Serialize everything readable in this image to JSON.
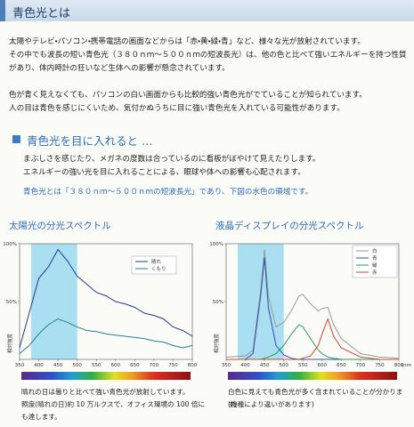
{
  "header": {
    "title": "青色光とは"
  },
  "intro": [
    "太陽やテレビ・パソコン・携帯電話の画面などからは「赤・黄・緑・青」など、様々な光が放射されています。",
    "その中でも波長の短い青色光（３８０ｎｍ～５００ｎｍの短波長光）は、他の色と比べて強いエネルギーを持つ性質があり、体内時計の狂いなど生体への影響が懸念されています。",
    "色が青く見えなくても、パソコンの白い画面からも比較的強い青色光がでていることが知られています。",
    "人の目は青色を感じにくいため、気付かぬうちに目に強い青色光を入れている可能性があります。"
  ],
  "section": {
    "title": "青色光を目に入れると …",
    "lines": [
      "まぶしさを感じたり、メガネの度数は合っているのに看板がぼやけて見えたりします。",
      "エネルギーの強い光を目に入れることによる、眼球や体への影響も心配されます。"
    ],
    "note": "青色光とは「３８０ｎｍ～５００ｎｍの短波長光」であり、下図の水色の領域です。"
  },
  "chart_data": [
    {
      "type": "line",
      "title": "太陽光の分光スペクトル",
      "y_label": "相対強度",
      "x": [
        350,
        375,
        400,
        425,
        450,
        475,
        500,
        525,
        550,
        575,
        600,
        625,
        650,
        675,
        700,
        725,
        750,
        775,
        800
      ],
      "xlim": [
        350,
        800
      ],
      "xticks": [
        350,
        400,
        450,
        500,
        550,
        600,
        650,
        700,
        750,
        800
      ],
      "ylim": [
        0,
        100
      ],
      "yticks": [
        {
          "value": 50,
          "label": "50%"
        },
        {
          "value": 100,
          "label": "100%"
        }
      ],
      "highlight_range": [
        380,
        500
      ],
      "series": [
        {
          "name": "晴れ",
          "color": "#1f3a8a",
          "values": [
            10,
            40,
            70,
            80,
            95,
            85,
            72,
            65,
            58,
            55,
            50,
            48,
            45,
            40,
            38,
            35,
            28,
            25,
            20
          ]
        },
        {
          "name": "くもり",
          "color": "#23808f",
          "values": [
            5,
            12,
            22,
            30,
            35,
            32,
            28,
            25,
            24,
            22,
            21,
            20,
            19,
            18,
            16,
            15,
            12,
            10,
            12
          ]
        }
      ],
      "caption": [
        "晴れの日は曇りと比べて強い青色光が放射しています。",
        "照度(晴れの日)約 10 万ルクスで、オフィス環境の 100 倍にも達します。"
      ]
    },
    {
      "type": "line",
      "title": "液晶ディスプレイの分光スペクトル",
      "y_label": "相対強度",
      "x_unit": "(nm)",
      "x": [
        350,
        400,
        420,
        440,
        450,
        460,
        480,
        500,
        520,
        540,
        550,
        570,
        590,
        600,
        615,
        630,
        650,
        700,
        750,
        800
      ],
      "xlim": [
        350,
        800
      ],
      "xticks": [
        350,
        400,
        450,
        500,
        550,
        600,
        650,
        700,
        750,
        800
      ],
      "ylim": [
        0,
        100
      ],
      "yticks": [
        {
          "value": 50,
          "label": "50%"
        },
        {
          "value": 100,
          "label": "100%"
        }
      ],
      "highlight_range": [
        380,
        500
      ],
      "series": [
        {
          "name": "白",
          "color": "#999999",
          "values": [
            2,
            3,
            8,
            60,
            95,
            55,
            28,
            32,
            42,
            55,
            56,
            48,
            42,
            44,
            45,
            30,
            18,
            5,
            2,
            1
          ]
        },
        {
          "name": "青",
          "color": "#2c4fb5",
          "values": [
            0,
            0,
            5,
            55,
            88,
            45,
            12,
            4,
            1,
            0,
            0,
            0,
            0,
            0,
            0,
            0,
            0,
            0,
            0,
            0
          ]
        },
        {
          "name": "緑",
          "color": "#2a9a5a",
          "values": [
            0,
            0,
            0,
            0,
            1,
            2,
            5,
            12,
            22,
            30,
            28,
            18,
            8,
            5,
            2,
            1,
            0,
            0,
            0,
            0
          ]
        },
        {
          "name": "赤",
          "color": "#d0452a",
          "values": [
            0,
            0,
            0,
            0,
            0,
            0,
            0,
            0,
            0,
            0,
            1,
            3,
            12,
            22,
            35,
            20,
            10,
            2,
            0,
            0
          ]
        }
      ],
      "caption": [
        "白色に見えても青色光が多く含まれていることが分かります。",
        "(機種により違いがあります)"
      ]
    }
  ]
}
